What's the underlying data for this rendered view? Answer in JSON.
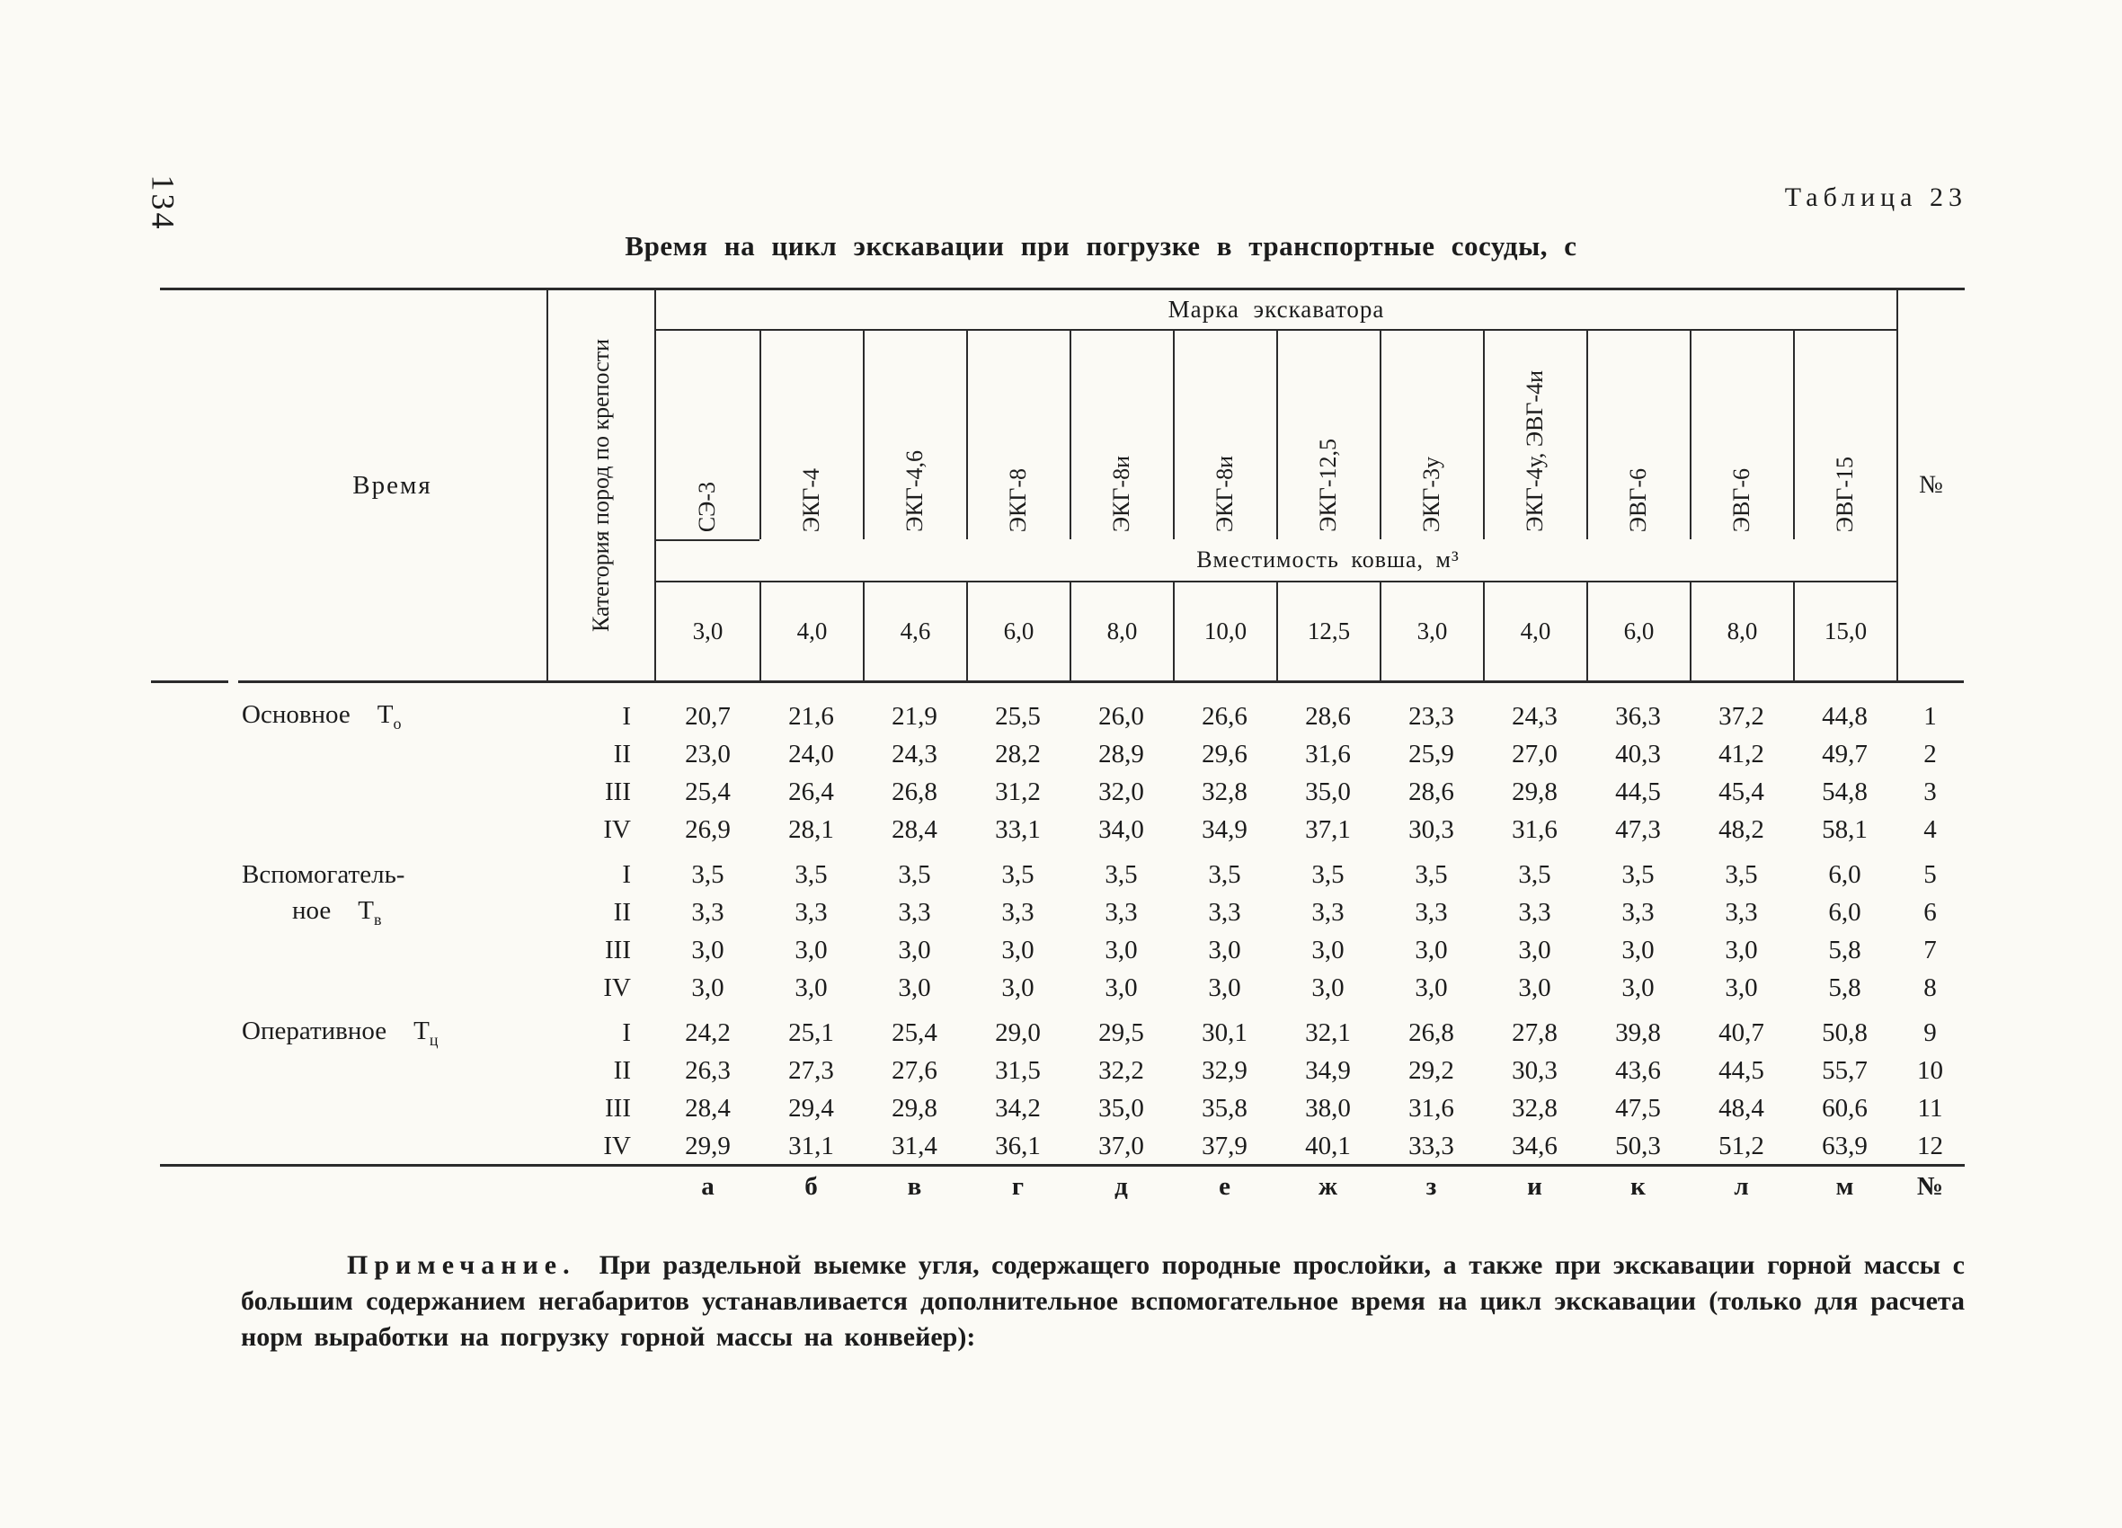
{
  "page": {
    "number": "134",
    "table_caption": "Таблица 23",
    "title": "Время на цикл экскавации при погрузке в транспортные сосуды, с"
  },
  "header": {
    "time_col": "Время",
    "category_col": "Категория пород по крепости",
    "brand_group": "Марка экскаватора",
    "bucket_group": "Вместимость ковша, м³",
    "num_col": "№",
    "brands": [
      "СЭ-3",
      "ЭКГ-4",
      "ЭКГ-4,6",
      "ЭКГ-8",
      "ЭКГ-8и",
      "ЭКГ-8и",
      "ЭКГ-12,5",
      "ЭКГ-3у",
      "ЭКГ-4у, ЭВГ-4и",
      "ЭВГ-6",
      "ЭВГ-6",
      "ЭВГ-15"
    ],
    "buckets": [
      "3,0",
      "4,0",
      "4,6",
      "6,0",
      "8,0",
      "10,0",
      "12,5",
      "3,0",
      "4,0",
      "6,0",
      "8,0",
      "15,0"
    ]
  },
  "body": {
    "groups": [
      {
        "label_lines": [
          "Основное"
        ],
        "symbol": "Т",
        "symbol_sub": "о",
        "rows": [
          {
            "category": "I",
            "values": [
              "20,7",
              "21,6",
              "21,9",
              "25,5",
              "26,0",
              "26,6",
              "28,6",
              "23,3",
              "24,3",
              "36,3",
              "37,2",
              "44,8"
            ],
            "num": "1"
          },
          {
            "category": "II",
            "values": [
              "23,0",
              "24,0",
              "24,3",
              "28,2",
              "28,9",
              "29,6",
              "31,6",
              "25,9",
              "27,0",
              "40,3",
              "41,2",
              "49,7"
            ],
            "num": "2"
          },
          {
            "category": "III",
            "values": [
              "25,4",
              "26,4",
              "26,8",
              "31,2",
              "32,0",
              "32,8",
              "35,0",
              "28,6",
              "29,8",
              "44,5",
              "45,4",
              "54,8"
            ],
            "num": "3"
          },
          {
            "category": "IV",
            "values": [
              "26,9",
              "28,1",
              "28,4",
              "33,1",
              "34,0",
              "34,9",
              "37,1",
              "30,3",
              "31,6",
              "47,3",
              "48,2",
              "58,1"
            ],
            "num": "4"
          }
        ]
      },
      {
        "label_lines": [
          "Вспомогатель-",
          "ное"
        ],
        "symbol": "Т",
        "symbol_sub": "в",
        "rows": [
          {
            "category": "I",
            "values": [
              "3,5",
              "3,5",
              "3,5",
              "3,5",
              "3,5",
              "3,5",
              "3,5",
              "3,5",
              "3,5",
              "3,5",
              "3,5",
              "6,0"
            ],
            "num": "5"
          },
          {
            "category": "II",
            "values": [
              "3,3",
              "3,3",
              "3,3",
              "3,3",
              "3,3",
              "3,3",
              "3,3",
              "3,3",
              "3,3",
              "3,3",
              "3,3",
              "6,0"
            ],
            "num": "6"
          },
          {
            "category": "III",
            "values": [
              "3,0",
              "3,0",
              "3,0",
              "3,0",
              "3,0",
              "3,0",
              "3,0",
              "3,0",
              "3,0",
              "3,0",
              "3,0",
              "5,8"
            ],
            "num": "7"
          },
          {
            "category": "IV",
            "values": [
              "3,0",
              "3,0",
              "3,0",
              "3,0",
              "3,0",
              "3,0",
              "3,0",
              "3,0",
              "3,0",
              "3,0",
              "3,0",
              "5,8"
            ],
            "num": "8"
          }
        ]
      },
      {
        "label_lines": [
          "Оперативное"
        ],
        "symbol": "Т",
        "symbol_sub": "ц",
        "rows": [
          {
            "category": "I",
            "values": [
              "24,2",
              "25,1",
              "25,4",
              "29,0",
              "29,5",
              "30,1",
              "32,1",
              "26,8",
              "27,8",
              "39,8",
              "40,7",
              "50,8"
            ],
            "num": "9"
          },
          {
            "category": "II",
            "values": [
              "26,3",
              "27,3",
              "27,6",
              "31,5",
              "32,2",
              "32,9",
              "34,9",
              "29,2",
              "30,3",
              "43,6",
              "44,5",
              "55,7"
            ],
            "num": "10"
          },
          {
            "category": "III",
            "values": [
              "28,4",
              "29,4",
              "29,8",
              "34,2",
              "35,0",
              "35,8",
              "38,0",
              "31,6",
              "32,8",
              "47,5",
              "48,4",
              "60,6"
            ],
            "num": "11"
          },
          {
            "category": "IV",
            "values": [
              "29,9",
              "31,1",
              "31,4",
              "36,1",
              "37,0",
              "37,9",
              "40,1",
              "33,3",
              "34,6",
              "50,3",
              "51,2",
              "63,9"
            ],
            "num": "12"
          }
        ]
      }
    ],
    "letters": [
      "а",
      "б",
      "в",
      "г",
      "д",
      "е",
      "ж",
      "з",
      "и",
      "к",
      "л",
      "м"
    ],
    "letters_num": "№"
  },
  "note": {
    "label": "Примечание.",
    "text": "При раздельной выемке угля, содержащего породные прослойки, а также при экскавации горной массы с большим содержанием негабаритов устанавливается дополнительное вспомогательное время на цикл экскавации (только для расчета норм выработки на погрузку горной массы на конвейер):"
  }
}
